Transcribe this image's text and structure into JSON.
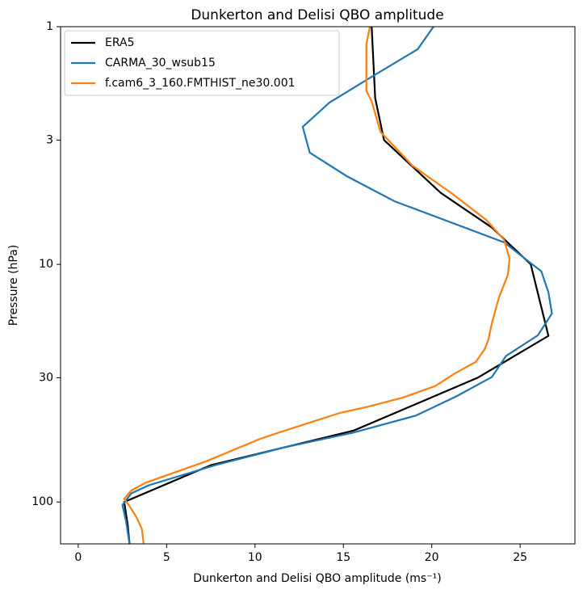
{
  "chart_data": {
    "type": "line",
    "title": "Dunkerton and Delisi QBO amplitude",
    "x_label": "Dunkerton and Delisi QBO amplitude (ms⁻¹)",
    "y_label": "Pressure (hPa)",
    "xlim": [
      -1.0,
      28.1
    ],
    "xticks": [
      0,
      5,
      10,
      15,
      20,
      25
    ],
    "ylim": [
      150,
      1
    ],
    "yticks": [
      1,
      3,
      10,
      30,
      100
    ],
    "log_y": true,
    "grid": false,
    "legend": "upper left",
    "series": [
      {
        "name": "ERA5",
        "color": "#000000",
        "values": [
          16.6,
          16.8,
          17.3,
          20.5,
          23.4,
          25.6,
          26.6,
          22.6,
          15.6,
          7.5,
          2.6,
          2.8,
          2.9
        ],
        "pressure": [
          1,
          2,
          3,
          5,
          7,
          10,
          20,
          30,
          50,
          70,
          100,
          125,
          150
        ]
      },
      {
        "name": "CARMA_30_wsub15",
        "color": "#1f77b4",
        "values": [
          20.1,
          19.2,
          16.6,
          14.2,
          12.7,
          13.1,
          15.2,
          17.9,
          24.1,
          26.2,
          26.6,
          26.8,
          26.0,
          24.2,
          23.4,
          21.4,
          19.1,
          15.5,
          11.7,
          7.8,
          4.0,
          3.0,
          2.5,
          2.7,
          2.9
        ],
        "pressure": [
          1,
          1.245,
          1.626,
          2.09,
          2.64,
          3.39,
          4.26,
          5.43,
          8.09,
          10.7,
          13.1,
          16.1,
          19.9,
          24.3,
          29.8,
          35.9,
          43.3,
          51.2,
          58.8,
          69.8,
          85,
          92,
          103,
          120,
          150
        ]
      },
      {
        "name": "f.cam6_3_160.FMTHIST_ne30.001",
        "color": "#ff7f0e",
        "values": [
          16.5,
          16.3,
          16.3,
          16.6,
          17.1,
          18.9,
          21.2,
          23.1,
          24.1,
          24.4,
          24.3,
          23.8,
          23.4,
          23.2,
          23.0,
          22.5,
          21.3,
          20.2,
          18.4,
          16.4,
          14.8,
          11.5,
          10.3,
          7.2,
          3.8,
          3.0,
          2.6,
          2.9,
          3.3,
          3.6,
          3.7
        ],
        "pressure": [
          1,
          1.19,
          1.86,
          2.06,
          2.77,
          3.84,
          5.07,
          6.52,
          7.9,
          9.46,
          11.1,
          13.8,
          17.7,
          20.8,
          22.7,
          25.7,
          28.8,
          32.5,
          36.3,
          39.7,
          42.2,
          50.6,
          54.2,
          67.6,
          83,
          89.5,
          97,
          104,
          116,
          130,
          150
        ]
      }
    ]
  }
}
